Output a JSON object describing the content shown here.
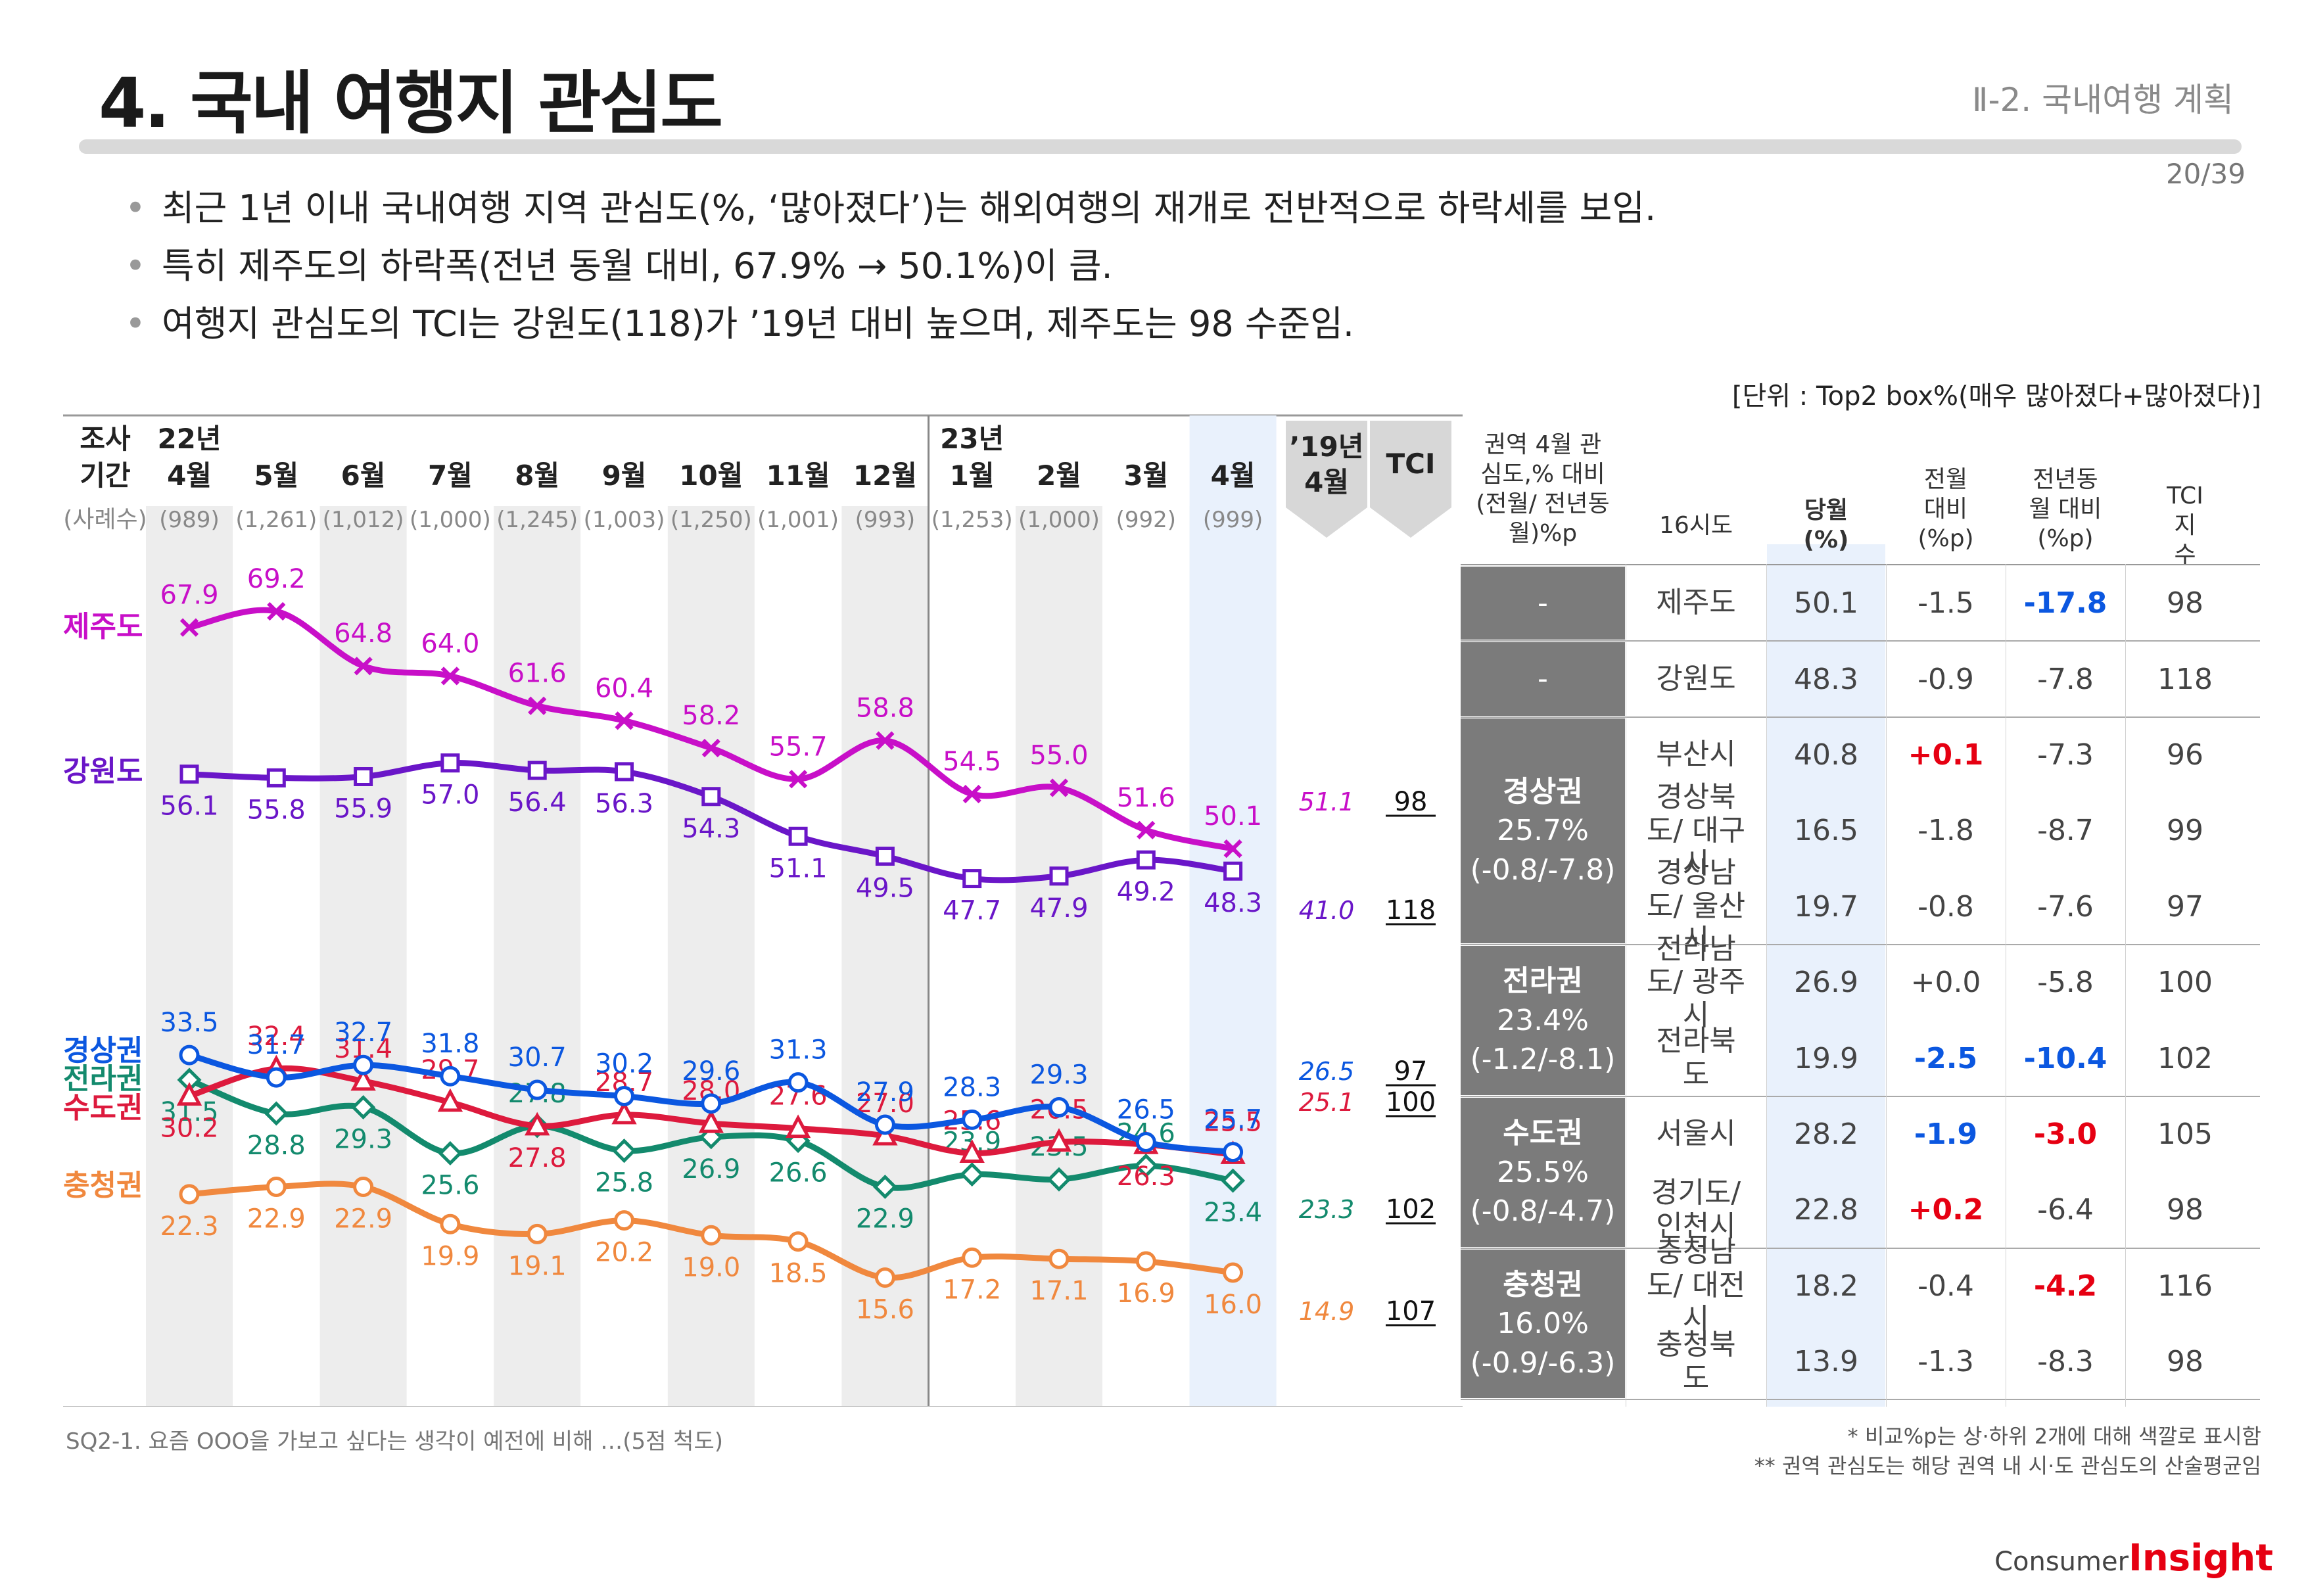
{
  "header": {
    "title": "4. 국내 여행지 관심도",
    "section": "Ⅱ-2. 국내여행 계획",
    "page": "20/39"
  },
  "bullets": [
    "최근 1년 이내 국내여행 지역 관심도(%, ‘많아졌다’)는 해외여행의 재개로 전반적으로 하락세를 보임.",
    "특히 제주도의 하락폭(전년 동월 대비, 67.9% → 50.1%)이 큼.",
    "여행지 관심도의 TCI는 강원도(118)가 ’19년 대비 높으며, 제주도는 98 수준임."
  ],
  "unit_note": "[단위 : Top2 box%(매우 많아졌다+많아졌다)]",
  "footnote_left": "SQ2-1. 요즘 OOO을 가보고 싶다는 생각이 예전에 비해 …(5점 척도)",
  "footnote_right": [
    "* 비교%p는 상·하위 2개에 대해 색깔로 표시함",
    "** 권역 관심도는 해당 권역 내 시·도 관심도의 산술평균임"
  ],
  "brand": {
    "prefix": "Consumer",
    "name": "Insight"
  },
  "colors": {
    "jeju": "#c80fc8",
    "gangwon": "#6a16c8",
    "gyeongsang": "#0b57e0",
    "jeolla": "#138a6d",
    "sudo": "#dd1a3d",
    "chungcheong": "#f0883e",
    "band": "#ededed",
    "highlight": "#e9f1fc",
    "up": "#e60012",
    "down": "#0b57e0"
  },
  "chart_data": {
    "type": "line",
    "title": "국내 여행지 관심도",
    "header_row_label": "조사기간",
    "sample_row_label": "(사례수)",
    "periods": [
      {
        "year": "22년",
        "month": "4월",
        "n": "(989)"
      },
      {
        "year": "",
        "month": "5월",
        "n": "(1,261)"
      },
      {
        "year": "",
        "month": "6월",
        "n": "(1,012)"
      },
      {
        "year": "",
        "month": "7월",
        "n": "(1,000)"
      },
      {
        "year": "",
        "month": "8월",
        "n": "(1,245)"
      },
      {
        "year": "",
        "month": "9월",
        "n": "(1,003)"
      },
      {
        "year": "",
        "month": "10월",
        "n": "(1,250)"
      },
      {
        "year": "",
        "month": "11월",
        "n": "(1,001)"
      },
      {
        "year": "",
        "month": "12월",
        "n": "(993)"
      },
      {
        "year": "23년",
        "month": "1월",
        "n": "(1,253)"
      },
      {
        "year": "",
        "month": "2월",
        "n": "(1,000)"
      },
      {
        "year": "",
        "month": "3월",
        "n": "(992)"
      },
      {
        "year": "",
        "month": "4월",
        "n": "(999)"
      }
    ],
    "ref_label": [
      "’19년",
      "4월"
    ],
    "tci_label": "TCI",
    "ylim": [
      10,
      72
    ],
    "series": [
      {
        "key": "jeju",
        "name": "제주도",
        "marker": "x",
        "values": [
          67.9,
          69.2,
          64.8,
          64.0,
          61.6,
          60.4,
          58.2,
          55.7,
          58.8,
          54.5,
          55.0,
          51.6,
          50.1
        ],
        "y2019": 51.1,
        "tci": 98,
        "labelpos": [
          "a",
          "a",
          "a",
          "a",
          "a",
          "a",
          "a",
          "a",
          "a",
          "a",
          "a",
          "a",
          "a"
        ]
      },
      {
        "key": "gangwon",
        "name": "강원도",
        "marker": "square",
        "values": [
          56.1,
          55.8,
          55.9,
          57.0,
          56.4,
          56.3,
          54.3,
          51.1,
          49.5,
          47.7,
          47.9,
          49.2,
          48.3
        ],
        "y2019": 41.0,
        "tci": 118,
        "labelpos": [
          "b",
          "b",
          "b",
          "b",
          "b",
          "b",
          "b",
          "b",
          "b",
          "b",
          "b",
          "b",
          "b"
        ]
      },
      {
        "key": "gyeongsang",
        "name": "경상권",
        "marker": "circle",
        "values": [
          33.5,
          31.7,
          32.7,
          31.8,
          30.7,
          30.2,
          29.6,
          31.3,
          27.9,
          28.3,
          29.3,
          26.5,
          25.7
        ],
        "y2019": 26.5,
        "tci": 97,
        "labelpos": [
          "a",
          "a",
          "a",
          "a",
          "a",
          "a",
          "a",
          "a",
          "a",
          "a",
          "a",
          "a",
          "a"
        ]
      },
      {
        "key": "jeolla",
        "name": "전라권",
        "marker": "diamond",
        "values": [
          31.5,
          28.8,
          29.3,
          25.6,
          27.8,
          25.8,
          26.9,
          26.6,
          22.9,
          23.9,
          23.5,
          24.6,
          23.4
        ],
        "y2019": 23.3,
        "tci": 102,
        "labelpos": [
          "b",
          "b",
          "b",
          "b",
          "a",
          "b",
          "b",
          "b",
          "b",
          "a",
          "a",
          "a",
          "b"
        ]
      },
      {
        "key": "sudo",
        "name": "수도권",
        "marker": "triangle",
        "values": [
          30.2,
          32.4,
          31.4,
          29.7,
          27.8,
          28.7,
          28.0,
          27.6,
          27.0,
          25.6,
          26.5,
          26.3,
          25.5
        ],
        "y2019": 25.1,
        "tci": 100,
        "labelpos": [
          "b",
          "a",
          "a",
          "a",
          "b",
          "a",
          "a",
          "a",
          "a",
          "a",
          "a",
          "b",
          "a"
        ]
      },
      {
        "key": "chungcheong",
        "name": "충청권",
        "marker": "circle",
        "values": [
          22.3,
          22.9,
          22.9,
          19.9,
          19.1,
          20.2,
          19.0,
          18.5,
          15.6,
          17.2,
          17.1,
          16.9,
          16.0
        ],
        "y2019": 14.9,
        "tci": 107,
        "labelpos": [
          "b",
          "b",
          "b",
          "b",
          "b",
          "b",
          "b",
          "b",
          "b",
          "b",
          "b",
          "b",
          "b"
        ]
      }
    ]
  },
  "table": {
    "headers": {
      "region": "권역 4월 관심도,% 대비 (전월/ 전년동월)%p",
      "province": "16시도",
      "current": "당월 (%)",
      "mom": "전월 대비 (%p)",
      "yoy": "전년동월 대비 (%p)",
      "tci": "TCI 지수"
    },
    "groups": [
      {
        "label": [
          "-"
        ],
        "rows": [
          {
            "name": "제주도",
            "cur": "50.1",
            "mom": "-1.5",
            "yoy": "-17.8",
            "tci": "98",
            "mom_hl": "",
            "yoy_hl": "down"
          }
        ]
      },
      {
        "label": [
          "-"
        ],
        "rows": [
          {
            "name": "강원도",
            "cur": "48.3",
            "mom": "-0.9",
            "yoy": "-7.8",
            "tci": "118",
            "mom_hl": "",
            "yoy_hl": ""
          }
        ]
      },
      {
        "label": [
          "경상권",
          "25.7%",
          "(-0.8/-7.8)"
        ],
        "rows": [
          {
            "name": "부산시",
            "cur": "40.8",
            "mom": "+0.1",
            "yoy": "-7.3",
            "tci": "96",
            "mom_hl": "up",
            "yoy_hl": ""
          },
          {
            "name": "경상북도/ 대구시",
            "cur": "16.5",
            "mom": "-1.8",
            "yoy": "-8.7",
            "tci": "99",
            "mom_hl": "",
            "yoy_hl": ""
          },
          {
            "name": "경상남도/ 울산시",
            "cur": "19.7",
            "mom": "-0.8",
            "yoy": "-7.6",
            "tci": "97",
            "mom_hl": "",
            "yoy_hl": ""
          }
        ]
      },
      {
        "label": [
          "전라권",
          "23.4%",
          "(-1.2/-8.1)"
        ],
        "rows": [
          {
            "name": "전라남도/ 광주시",
            "cur": "26.9",
            "mom": "+0.0",
            "yoy": "-5.8",
            "tci": "100",
            "mom_hl": "",
            "yoy_hl": ""
          },
          {
            "name": "전라북도",
            "cur": "19.9",
            "mom": "-2.5",
            "yoy": "-10.4",
            "tci": "102",
            "mom_hl": "down",
            "yoy_hl": "down"
          }
        ]
      },
      {
        "label": [
          "수도권",
          "25.5%",
          "(-0.8/-4.7)"
        ],
        "rows": [
          {
            "name": "서울시",
            "cur": "28.2",
            "mom": "-1.9",
            "yoy": "-3.0",
            "tci": "105",
            "mom_hl": "down",
            "yoy_hl": "up"
          },
          {
            "name": "경기도/ 인천시",
            "cur": "22.8",
            "mom": "+0.2",
            "yoy": "-6.4",
            "tci": "98",
            "mom_hl": "up",
            "yoy_hl": ""
          }
        ]
      },
      {
        "label": [
          "충청권",
          "16.0%",
          "(-0.9/-6.3)"
        ],
        "rows": [
          {
            "name": "충청남도/ 대전시",
            "cur": "18.2",
            "mom": "-0.4",
            "yoy": "-4.2",
            "tci": "116",
            "mom_hl": "",
            "yoy_hl": "up"
          },
          {
            "name": "충청북도",
            "cur": "13.9",
            "mom": "-1.3",
            "yoy": "-8.3",
            "tci": "98",
            "mom_hl": "",
            "yoy_hl": ""
          }
        ]
      }
    ]
  }
}
